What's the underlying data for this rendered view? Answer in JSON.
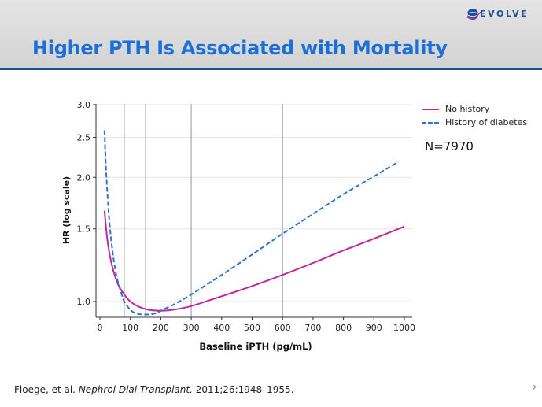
{
  "slide": {
    "title": "Higher PTH Is Associated with Mortality",
    "logo_text": "EVOLVE",
    "n_label": "N=7970",
    "citation_authors": "Floege, et al.",
    "citation_journal": "Nephrol Dial Transplant.",
    "citation_details": "2011;26:1948–1955.",
    "page_number": "2",
    "colors": {
      "title": "#1c6fd6",
      "rule": "#1f4e9c",
      "no_history": "#c2279e",
      "diabetes": "#2f74c9"
    }
  },
  "chart_data": {
    "type": "line",
    "title": "",
    "xlabel": "Baseline iPTH (pg/mL)",
    "ylabel": "HR (log scale)",
    "xlim": [
      0,
      1000
    ],
    "ylim": [
      0.9,
      3.0
    ],
    "y_scale": "log",
    "x_ticks": [
      0,
      100,
      200,
      300,
      400,
      500,
      600,
      700,
      800,
      900,
      1000
    ],
    "y_ticks": [
      1.0,
      1.5,
      2.0,
      2.5,
      3.0
    ],
    "y_tick_labels": [
      "1.0",
      "1.5",
      "2.0",
      "2.5",
      "3.0"
    ],
    "reference_lines_x": [
      80,
      150,
      300,
      600
    ],
    "legend_position": "top-right",
    "series": [
      {
        "name": "No history",
        "style": "solid",
        "color": "#c2279e",
        "x": [
          15,
          25,
          40,
          60,
          80,
          100,
          130,
          160,
          200,
          240,
          300,
          400,
          500,
          600,
          700,
          800,
          900,
          1000
        ],
        "y": [
          1.66,
          1.4,
          1.22,
          1.1,
          1.04,
          1.0,
          0.97,
          0.955,
          0.95,
          0.955,
          0.975,
          1.03,
          1.09,
          1.16,
          1.24,
          1.33,
          1.42,
          1.52
        ]
      },
      {
        "name": "History of diabetes",
        "style": "dashed",
        "color": "#2f74c9",
        "x": [
          15,
          20,
          30,
          40,
          50,
          60,
          70,
          80,
          100,
          120,
          150,
          180,
          200,
          250,
          300,
          400,
          500,
          600,
          700,
          800,
          900,
          980
        ],
        "y": [
          2.6,
          2.1,
          1.6,
          1.35,
          1.2,
          1.11,
          1.05,
          1.0,
          0.955,
          0.935,
          0.93,
          0.935,
          0.95,
          0.99,
          1.04,
          1.16,
          1.3,
          1.46,
          1.63,
          1.82,
          2.01,
          2.18
        ]
      }
    ]
  }
}
